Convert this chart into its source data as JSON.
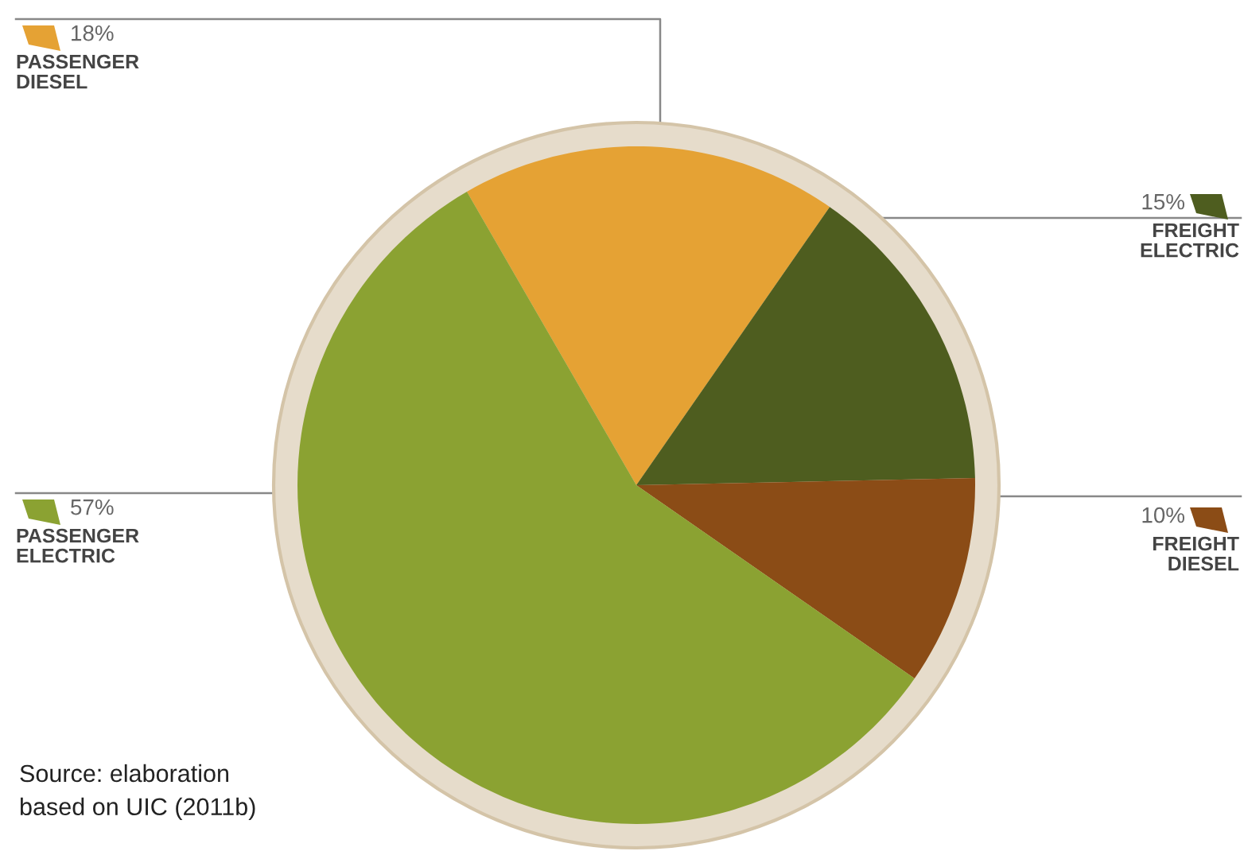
{
  "chart_data": {
    "type": "pie",
    "categories": [
      "PASSENGER\nDIESEL",
      "FREIGHT\nELECTRIC",
      "FREIGHT\nDIESEL",
      "PASSENGER\nELECTRIC"
    ],
    "values": [
      18,
      15,
      10,
      57
    ],
    "colors": [
      "#e5a234",
      "#4e5d1f",
      "#8b4c16",
      "#8ba232"
    ],
    "value_labels": [
      "18%",
      "15%",
      "10%",
      "57%"
    ],
    "legend": "left",
    "annotations": [
      "Source: elaboration\nbased on UIC (2011b)"
    ]
  }
}
